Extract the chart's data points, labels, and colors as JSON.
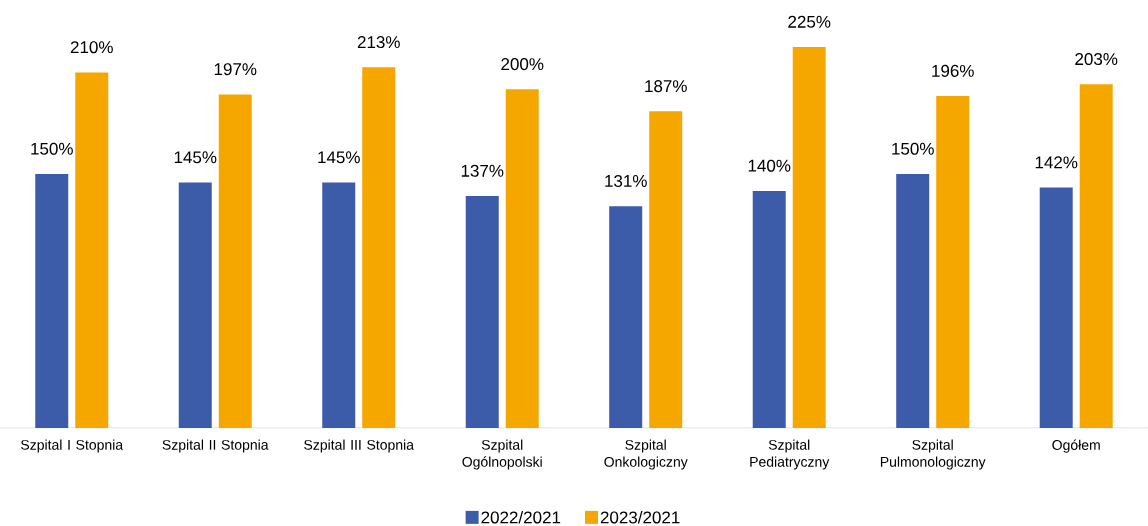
{
  "chart_data": {
    "type": "bar",
    "categories": [
      "Szpital I Stopnia",
      "Szpital II Stopnia",
      "Szpital III Stopnia",
      "Szpital Ogólnopolski",
      "Szpital Onkologiczny",
      "Szpital Pediatryczny",
      "Szpital Pulmonologiczny",
      "Ogółem"
    ],
    "series": [
      {
        "name": "2022/2021",
        "color": "#3c5ba9",
        "values": [
          150,
          145,
          145,
          137,
          131,
          140,
          150,
          142
        ],
        "value_labels": [
          "150%",
          "145%",
          "145%",
          "137%",
          "131%",
          "140%",
          "150%",
          "142%"
        ]
      },
      {
        "name": "2023/2021",
        "color": "#f5a700",
        "values": [
          210,
          197,
          213,
          200,
          187,
          225,
          196,
          203
        ],
        "value_labels": [
          "210%",
          "197%",
          "213%",
          "200%",
          "187%",
          "225%",
          "196%",
          "203%"
        ]
      }
    ],
    "legend": "bottom",
    "grid": false
  }
}
